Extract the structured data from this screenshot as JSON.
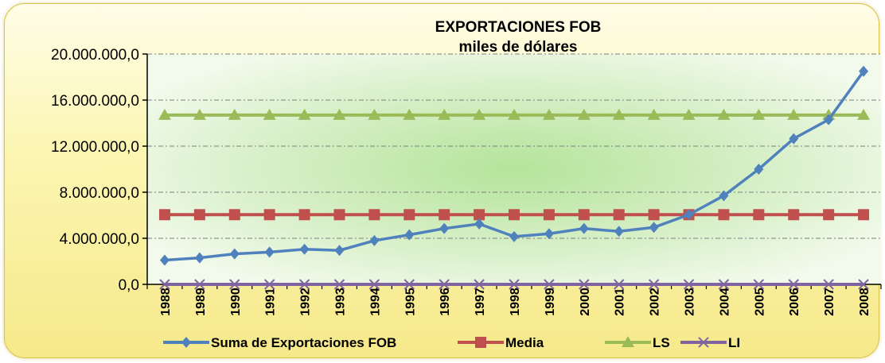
{
  "chart_data": {
    "type": "line",
    "title": "EXPORTACIONES FOB",
    "subtitle": "miles de dólares",
    "xlabel": "",
    "ylabel": "",
    "categories": [
      "1988",
      "1989",
      "1990",
      "1991",
      "1992",
      "1993",
      "1994",
      "1995",
      "1996",
      "1997",
      "1998",
      "1999",
      "2000",
      "2001",
      "2002",
      "2003",
      "2004",
      "2005",
      "2006",
      "2007",
      "2008"
    ],
    "y_ticks": [
      "0,0",
      "4.000.000,0",
      "8.000.000,0",
      "12.000.000,0",
      "16.000.000,0",
      "20.000.000,0"
    ],
    "ylim": [
      0,
      20000000
    ],
    "grid": "horizontal dashed",
    "legend_position": "bottom",
    "series": [
      {
        "name": "Suma de Exportaciones FOB",
        "color": "#4f81bd",
        "marker": "diamond",
        "values": [
          2100000,
          2300000,
          2650000,
          2800000,
          3050000,
          2950000,
          3800000,
          4300000,
          4850000,
          5250000,
          4150000,
          4400000,
          4850000,
          4600000,
          4950000,
          6050000,
          7700000,
          10000000,
          12650000,
          14300000,
          18500000
        ]
      },
      {
        "name": "Media",
        "color": "#c0504d",
        "marker": "square",
        "values": [
          6050000,
          6050000,
          6050000,
          6050000,
          6050000,
          6050000,
          6050000,
          6050000,
          6050000,
          6050000,
          6050000,
          6050000,
          6050000,
          6050000,
          6050000,
          6050000,
          6050000,
          6050000,
          6050000,
          6050000,
          6050000
        ]
      },
      {
        "name": "LS",
        "color": "#9bbb59",
        "marker": "triangle",
        "values": [
          14700000,
          14700000,
          14700000,
          14700000,
          14700000,
          14700000,
          14700000,
          14700000,
          14700000,
          14700000,
          14700000,
          14700000,
          14700000,
          14700000,
          14700000,
          14700000,
          14700000,
          14700000,
          14700000,
          14700000,
          14700000
        ]
      },
      {
        "name": "LI",
        "color": "#8064a2",
        "marker": "x",
        "values": [
          0,
          0,
          0,
          0,
          0,
          0,
          0,
          0,
          0,
          0,
          0,
          0,
          0,
          0,
          0,
          0,
          0,
          0,
          0,
          0,
          0
        ]
      }
    ]
  }
}
